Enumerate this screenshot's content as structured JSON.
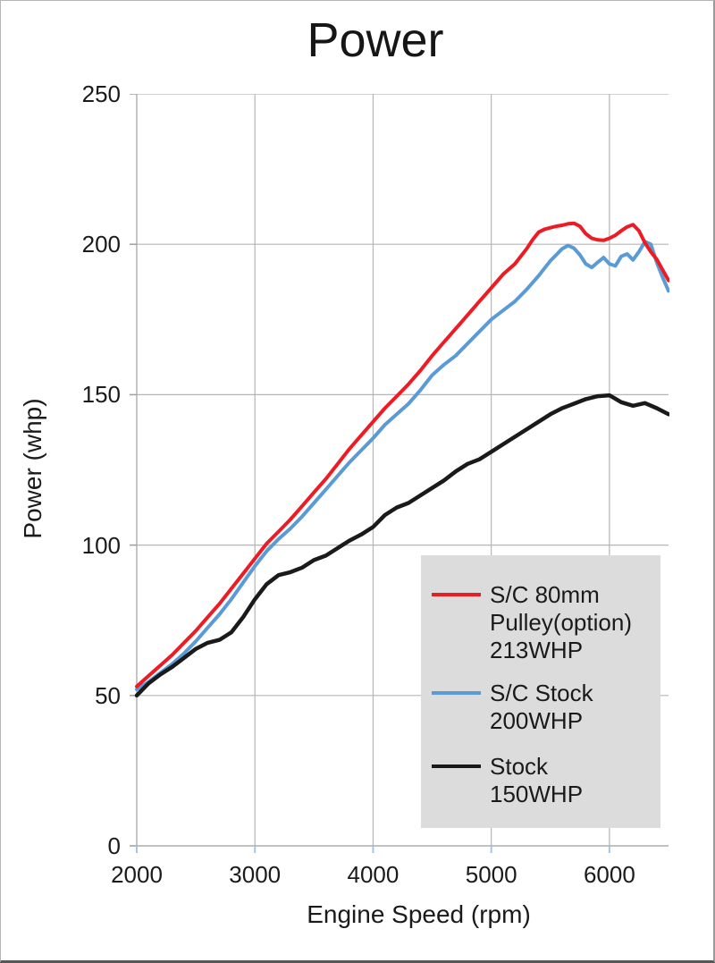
{
  "figure": {
    "title": "Power",
    "x_axis_title": "Engine Speed (rpm)",
    "y_axis_title": "Power (whp)"
  },
  "colors": {
    "grid": "#b5b5b5",
    "axis": "#9e9e9e",
    "x_tick": "#a6c5e5",
    "legend_bg": "#dcdcdc",
    "text": "#1a1a1a"
  },
  "chart_data": {
    "type": "line",
    "title": "Power",
    "xlabel": "Engine Speed (rpm)",
    "ylabel": "Power (whp)",
    "xlim": [
      2000,
      6500
    ],
    "ylim": [
      0,
      250
    ],
    "x_ticks": [
      2000,
      3000,
      4000,
      5000,
      6000
    ],
    "y_ticks": [
      0,
      50,
      100,
      150,
      200,
      250
    ],
    "grid": true,
    "legend_position": "lower right",
    "series": [
      {
        "name": "S/C 80mm Pulley(option) 213WHP",
        "legend_label": "S/C 80mm\nPulley(option)\n213WHP",
        "color": "#ed1c24",
        "width": 4,
        "z": 2,
        "points": [
          [
            2000,
            53
          ],
          [
            2100,
            56.5
          ],
          [
            2200,
            60
          ],
          [
            2300,
            63.5
          ],
          [
            2400,
            67.5
          ],
          [
            2500,
            71.5
          ],
          [
            2600,
            76
          ],
          [
            2700,
            80.5
          ],
          [
            2800,
            85.5
          ],
          [
            2900,
            90.5
          ],
          [
            3000,
            95.5
          ],
          [
            3100,
            100.5
          ],
          [
            3200,
            104.5
          ],
          [
            3300,
            108.5
          ],
          [
            3400,
            113
          ],
          [
            3500,
            117.5
          ],
          [
            3600,
            122
          ],
          [
            3700,
            127
          ],
          [
            3800,
            132
          ],
          [
            3900,
            136.5
          ],
          [
            4000,
            141
          ],
          [
            4100,
            145.5
          ],
          [
            4200,
            149.5
          ],
          [
            4300,
            153.5
          ],
          [
            4400,
            158
          ],
          [
            4500,
            163
          ],
          [
            4600,
            167.5
          ],
          [
            4700,
            172
          ],
          [
            4800,
            176.5
          ],
          [
            4900,
            181
          ],
          [
            5000,
            185.5
          ],
          [
            5100,
            190
          ],
          [
            5200,
            193.5
          ],
          [
            5300,
            198.5
          ],
          [
            5350,
            201.5
          ],
          [
            5400,
            204
          ],
          [
            5450,
            205
          ],
          [
            5500,
            205.5
          ],
          [
            5550,
            206
          ],
          [
            5600,
            206.3
          ],
          [
            5650,
            206.8
          ],
          [
            5700,
            207
          ],
          [
            5750,
            206
          ],
          [
            5800,
            203.5
          ],
          [
            5850,
            202
          ],
          [
            5900,
            201.5
          ],
          [
            5950,
            201.3
          ],
          [
            6000,
            202
          ],
          [
            6050,
            203
          ],
          [
            6100,
            204.5
          ],
          [
            6150,
            205.8
          ],
          [
            6200,
            206.5
          ],
          [
            6250,
            204.5
          ],
          [
            6300,
            200.5
          ],
          [
            6350,
            197.5
          ],
          [
            6400,
            195
          ],
          [
            6450,
            191.5
          ],
          [
            6500,
            188
          ]
        ]
      },
      {
        "name": "S/C Stock 200WHP",
        "legend_label": "S/C Stock\n200WHP",
        "color": "#5b9bd5",
        "width": 4,
        "z": 1,
        "points": [
          [
            2000,
            52
          ],
          [
            2100,
            54.5
          ],
          [
            2200,
            57.5
          ],
          [
            2300,
            60.5
          ],
          [
            2400,
            64
          ],
          [
            2500,
            68
          ],
          [
            2600,
            72.5
          ],
          [
            2700,
            77
          ],
          [
            2800,
            82
          ],
          [
            2900,
            87.5
          ],
          [
            3000,
            93
          ],
          [
            3100,
            98
          ],
          [
            3200,
            102
          ],
          [
            3300,
            105.5
          ],
          [
            3400,
            109.5
          ],
          [
            3500,
            114
          ],
          [
            3600,
            118.5
          ],
          [
            3700,
            123
          ],
          [
            3800,
            127.5
          ],
          [
            3900,
            131.5
          ],
          [
            4000,
            135.5
          ],
          [
            4100,
            140
          ],
          [
            4200,
            143.5
          ],
          [
            4300,
            147
          ],
          [
            4400,
            151.5
          ],
          [
            4500,
            156.5
          ],
          [
            4600,
            160
          ],
          [
            4700,
            163
          ],
          [
            4800,
            167
          ],
          [
            4900,
            171
          ],
          [
            5000,
            175
          ],
          [
            5100,
            178
          ],
          [
            5200,
            181
          ],
          [
            5300,
            185
          ],
          [
            5400,
            189.5
          ],
          [
            5500,
            194.5
          ],
          [
            5550,
            196.5
          ],
          [
            5600,
            198.5
          ],
          [
            5650,
            199.6
          ],
          [
            5700,
            198.7
          ],
          [
            5750,
            196.5
          ],
          [
            5800,
            193.5
          ],
          [
            5850,
            192.3
          ],
          [
            5900,
            194
          ],
          [
            5950,
            195.6
          ],
          [
            6000,
            193.5
          ],
          [
            6050,
            192.8
          ],
          [
            6100,
            196
          ],
          [
            6150,
            196.8
          ],
          [
            6200,
            194.8
          ],
          [
            6250,
            197.5
          ],
          [
            6300,
            200.9
          ],
          [
            6350,
            200
          ],
          [
            6400,
            194
          ],
          [
            6450,
            189
          ],
          [
            6500,
            184.5
          ]
        ]
      },
      {
        "name": "Stock 150WHP",
        "legend_label": "Stock\n150WHP",
        "color": "#1a1a1a",
        "width": 4.5,
        "z": 3,
        "points": [
          [
            2000,
            50
          ],
          [
            2100,
            54
          ],
          [
            2200,
            57
          ],
          [
            2300,
            59.5
          ],
          [
            2400,
            62.5
          ],
          [
            2500,
            65.5
          ],
          [
            2600,
            67.5
          ],
          [
            2700,
            68.5
          ],
          [
            2800,
            71
          ],
          [
            2900,
            76
          ],
          [
            3000,
            82
          ],
          [
            3100,
            87
          ],
          [
            3200,
            90
          ],
          [
            3300,
            91
          ],
          [
            3400,
            92.5
          ],
          [
            3500,
            95
          ],
          [
            3600,
            96.5
          ],
          [
            3700,
            99
          ],
          [
            3800,
            101.5
          ],
          [
            3900,
            103.5
          ],
          [
            4000,
            106
          ],
          [
            4100,
            110
          ],
          [
            4200,
            112.5
          ],
          [
            4300,
            114
          ],
          [
            4400,
            116.5
          ],
          [
            4500,
            119
          ],
          [
            4600,
            121.5
          ],
          [
            4700,
            124.5
          ],
          [
            4800,
            127
          ],
          [
            4900,
            128.5
          ],
          [
            5000,
            131
          ],
          [
            5100,
            133.5
          ],
          [
            5200,
            136
          ],
          [
            5300,
            138.5
          ],
          [
            5400,
            141
          ],
          [
            5500,
            143.5
          ],
          [
            5600,
            145.5
          ],
          [
            5700,
            147
          ],
          [
            5800,
            148.5
          ],
          [
            5900,
            149.5
          ],
          [
            6000,
            149.8
          ],
          [
            6100,
            147.5
          ],
          [
            6200,
            146.3
          ],
          [
            6300,
            147.2
          ],
          [
            6400,
            145.5
          ],
          [
            6500,
            143.5
          ]
        ]
      }
    ]
  }
}
